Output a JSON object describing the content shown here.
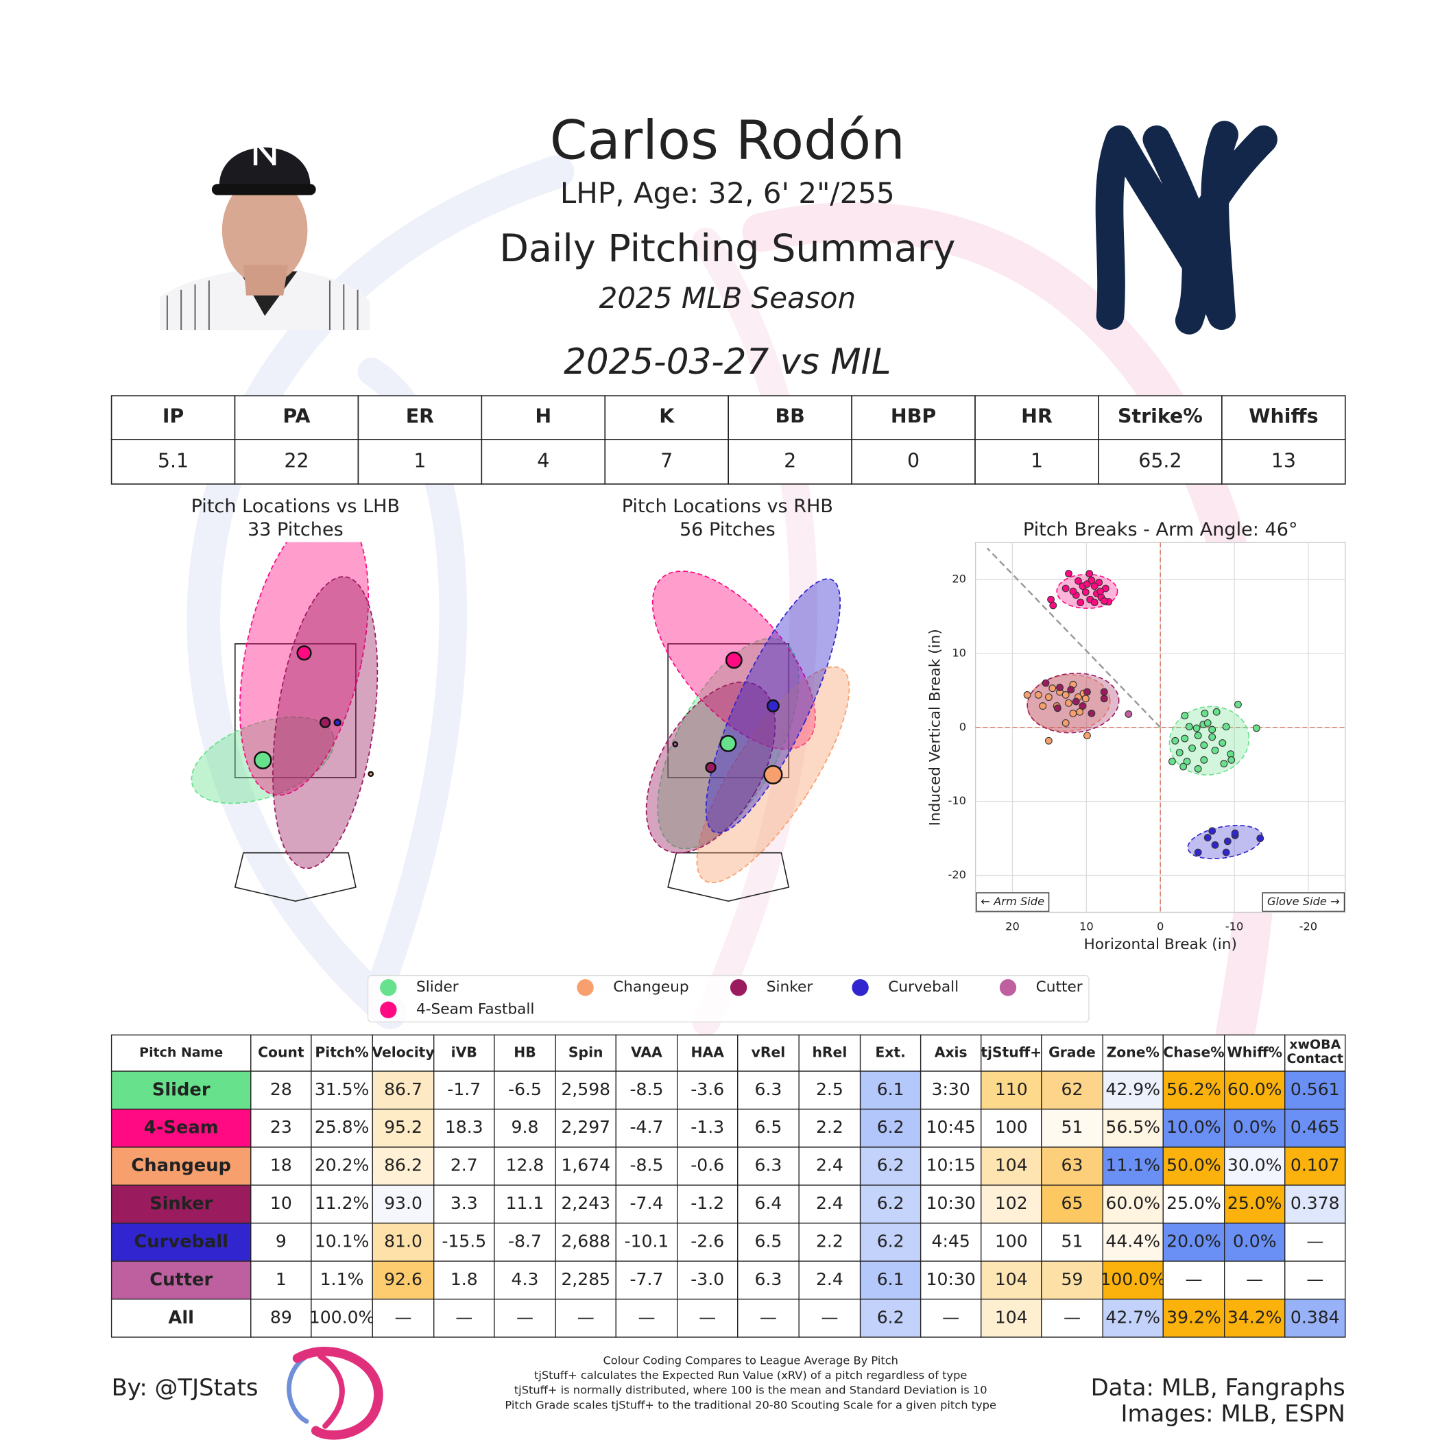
{
  "header": {
    "name": "Carlos Rodón",
    "bio": "LHP, Age: 32, 6' 2\"/255",
    "title": "Daily Pitching Summary",
    "season": "2025 MLB Season",
    "game": "2025-03-27 vs MIL"
  },
  "game_stats": {
    "columns": [
      "IP",
      "PA",
      "ER",
      "H",
      "K",
      "BB",
      "HBP",
      "HR",
      "Strike%",
      "Whiffs"
    ],
    "values": [
      5.1,
      22,
      1,
      4,
      7,
      2,
      0,
      1,
      65.2,
      13
    ]
  },
  "chart_data": [
    {
      "type": "location",
      "title": "Pitch Locations vs LHB",
      "subtitle": "33 Pitches",
      "xlim": [
        -2,
        2
      ],
      "ylim": [
        0,
        4.75
      ],
      "series": [
        {
          "color": "#67e18c",
          "x": -0.45,
          "y": 1.74,
          "size": 15,
          "ellipse": [
            1.03,
            0.51,
            -20
          ]
        },
        {
          "color": "#ff0a82",
          "x": 0.12,
          "y": 3.22,
          "size": 10,
          "ellipse": [
            0.8,
            2.0,
            12
          ]
        },
        {
          "color": "#f7a06e",
          "x": 1.04,
          "y": 1.55,
          "size": 1,
          "ellipse": null
        },
        {
          "color": "#9b1c5e",
          "x": 0.41,
          "y": 2.26,
          "size": 5,
          "ellipse": [
            0.67,
            2.03,
            8
          ]
        },
        {
          "color": "#3025ce",
          "x": 0.58,
          "y": 2.26,
          "size": 2,
          "ellipse": null
        }
      ]
    },
    {
      "type": "location",
      "title": "Pitch Locations vs RHB",
      "subtitle": "56 Pitches",
      "xlim": [
        -2,
        2
      ],
      "ylim": [
        0,
        4.75
      ],
      "series": [
        {
          "color": "#67e18c",
          "x": 0.01,
          "y": 1.97,
          "size": 13,
          "ellipse": [
            0.7,
            1.6,
            28
          ]
        },
        {
          "color": "#ff0a82",
          "x": 0.09,
          "y": 3.12,
          "size": 13,
          "ellipse": [
            1.51,
            0.7,
            49
          ]
        },
        {
          "color": "#f7a06e",
          "x": 0.63,
          "y": 1.54,
          "size": 17,
          "ellipse": [
            0.54,
            1.74,
            33
          ]
        },
        {
          "color": "#9b1c5e",
          "x": -0.23,
          "y": 1.64,
          "size": 5,
          "ellipse": [
            0.7,
            1.3,
            30
          ]
        },
        {
          "color": "#3025ce",
          "x": 0.63,
          "y": 2.49,
          "size": 7,
          "ellipse": [
            0.49,
            1.92,
            25
          ]
        },
        {
          "color": "#be5fa0",
          "x": -0.72,
          "y": 1.96,
          "size": 1,
          "ellipse": null
        }
      ]
    },
    {
      "type": "scatter",
      "title": "Pitch Breaks - Arm Angle: 46°",
      "arm_angle": 46,
      "xlabel": "Horizontal Break (in)",
      "ylabel": "Induced Vertical Break (in)",
      "xlim": [
        25,
        -25
      ],
      "ylim": [
        -25,
        25
      ],
      "xticks": [
        20,
        10,
        0,
        -10,
        -20
      ],
      "yticks": [
        20,
        10,
        0,
        -10,
        -20
      ],
      "grid": true,
      "annotations": [
        "← Arm Side",
        "Glove Side →"
      ],
      "series": [
        {
          "name": "Slider",
          "color": "#67e18c",
          "x": [
            -3.3,
            -6.0,
            -7.6,
            -10.5,
            -13.0,
            -5.8,
            -6.4,
            -8.9,
            -3.9,
            -4.9,
            -3.3,
            -2.0,
            -5.1,
            -7.0,
            -8.4,
            -5.9,
            -4.3,
            -2.6,
            -7.4,
            -9.5,
            -8.6,
            -5.9,
            -3.6,
            -3.1,
            -5.1,
            -9.6,
            -1.6,
            -7.0
          ],
          "y": [
            1.6,
            1.9,
            2.1,
            3.1,
            -0.1,
            0.4,
            0.6,
            0.1,
            0.1,
            -0.1,
            -1.5,
            -1.8,
            -1.1,
            -1.3,
            -2.1,
            -2.4,
            -2.8,
            -3.4,
            -3.1,
            -3.6,
            -4.9,
            -4.4,
            -4.6,
            -5.3,
            -5.6,
            -4.4,
            -4.6,
            -0.3
          ],
          "ellipse": [
            -6.6,
            -1.8,
            5.4,
            4.6,
            -10
          ]
        },
        {
          "name": "4-Seam Fastball",
          "color": "#ff0a82",
          "x": [
            12.4,
            9.6,
            11.1,
            8.3,
            10.5,
            8.9,
            7.4,
            12.8,
            10.1,
            8.6,
            11.4,
            8.0,
            9.5,
            7.0,
            10.8,
            8.9,
            7.6,
            14.8,
            14.5,
            9.9,
            11.8,
            9.3,
            8.1
          ],
          "y": [
            20.8,
            20.8,
            19.8,
            19.6,
            19.1,
            19.1,
            18.8,
            18.8,
            18.3,
            18.1,
            17.9,
            17.6,
            17.3,
            17.0,
            16.9,
            16.9,
            17.1,
            17.3,
            16.5,
            19.4,
            18.4,
            19.9,
            18.4
          ],
          "ellipse": [
            9.9,
            18.4,
            4.1,
            2.3,
            0
          ]
        },
        {
          "name": "Changeup",
          "color": "#f7a06e",
          "x": [
            18.0,
            16.5,
            15.1,
            14.6,
            13.6,
            12.8,
            11.8,
            11.1,
            10.4,
            10.1,
            12.4,
            14.0,
            10.9,
            11.8,
            12.8,
            9.9,
            15.1,
            15.9
          ],
          "y": [
            4.4,
            4.4,
            4.1,
            5.3,
            4.8,
            4.4,
            5.8,
            4.1,
            4.6,
            3.9,
            3.3,
            2.9,
            2.1,
            1.9,
            0.6,
            -1.1,
            -1.8,
            2.9
          ],
          "ellipse": [
            12.4,
            3.3,
            5.6,
            3.8,
            -5
          ]
        },
        {
          "name": "Sinker",
          "color": "#9b1c5e",
          "x": [
            15.5,
            13.6,
            12.1,
            9.9,
            7.6,
            7.6,
            10.5,
            9.3,
            13.9,
            11.4
          ],
          "y": [
            6.0,
            5.4,
            5.1,
            4.8,
            4.8,
            3.9,
            2.9,
            1.9,
            2.6,
            3.5
          ],
          "ellipse": [
            11.8,
            3.3,
            6.2,
            4.0,
            -5
          ]
        },
        {
          "name": "Curveball",
          "color": "#3025ce",
          "x": [
            -5.1,
            -6.4,
            -7.0,
            -7.4,
            -8.9,
            -9.1,
            -10.1,
            -10.1,
            -13.5
          ],
          "y": [
            -16.9,
            -14.9,
            -14.0,
            -15.9,
            -16.9,
            -15.4,
            -14.6,
            -14.3,
            -15.0
          ],
          "ellipse": [
            -8.75,
            -15.5,
            5.1,
            2.1,
            -10
          ]
        },
        {
          "name": "Cutter",
          "color": "#be5fa0",
          "x": [
            4.3
          ],
          "y": [
            1.8
          ],
          "ellipse": null
        }
      ]
    }
  ],
  "pitch_table": {
    "columns": [
      "Pitch Name",
      "Count",
      "Pitch%",
      "Velocity",
      "iVB",
      "HB",
      "Spin",
      "VAA",
      "HAA",
      "vRel",
      "hRel",
      "Ext.",
      "Axis",
      "tjStuff+",
      "Grade",
      "Zone%",
      "Chase%",
      "Whiff%",
      "xwOBA Contact"
    ],
    "rows": [
      [
        "Slider",
        "28",
        "31.5%",
        "86.7",
        "-1.7",
        "-6.5",
        "2,598",
        "-8.5",
        "-3.6",
        "6.3",
        "2.5",
        "6.1",
        "3:30",
        "110",
        "62",
        "42.9%",
        "56.2%",
        "60.0%",
        "0.561"
      ],
      [
        "4-Seam",
        "23",
        "25.8%",
        "95.2",
        "18.3",
        "9.8",
        "2,297",
        "-4.7",
        "-1.3",
        "6.5",
        "2.2",
        "6.2",
        "10:45",
        "100",
        "51",
        "56.5%",
        "10.0%",
        "0.0%",
        "0.465"
      ],
      [
        "Changeup",
        "18",
        "20.2%",
        "86.2",
        "2.7",
        "12.8",
        "1,674",
        "-8.5",
        "-0.6",
        "6.3",
        "2.4",
        "6.2",
        "10:15",
        "104",
        "63",
        "11.1%",
        "50.0%",
        "30.0%",
        "0.107"
      ],
      [
        "Sinker",
        "10",
        "11.2%",
        "93.0",
        "3.3",
        "11.1",
        "2,243",
        "-7.4",
        "-1.2",
        "6.4",
        "2.4",
        "6.2",
        "10:30",
        "102",
        "65",
        "60.0%",
        "25.0%",
        "25.0%",
        "0.378"
      ],
      [
        "Curveball",
        "9",
        "10.1%",
        "81.0",
        "-15.5",
        "-8.7",
        "2,688",
        "-10.1",
        "-2.6",
        "6.5",
        "2.2",
        "6.2",
        "4:45",
        "100",
        "51",
        "44.4%",
        "20.0%",
        "0.0%",
        "—"
      ],
      [
        "Cutter",
        "1",
        "1.1%",
        "92.6",
        "1.8",
        "4.3",
        "2,285",
        "-7.7",
        "-3.0",
        "6.3",
        "2.4",
        "6.1",
        "10:30",
        "104",
        "59",
        "100.0%",
        "—",
        "—",
        "—"
      ],
      [
        "All",
        "89",
        "100.0%",
        "—",
        "—",
        "—",
        "—",
        "—",
        "—",
        "—",
        "—",
        "6.2",
        "—",
        "104",
        "—",
        "42.7%",
        "39.2%",
        "34.2%",
        "0.384"
      ]
    ],
    "colors": [
      [
        "#67e18c",
        null,
        null,
        "#fde9c4",
        null,
        null,
        null,
        null,
        null,
        null,
        null,
        "#b5c8fb",
        null,
        "#fdd98b",
        "#fdd58a",
        "#edf1fc",
        "#fcb20c",
        "#fcb20c",
        "#6a90f5"
      ],
      [
        "#ff0a82",
        null,
        null,
        "#feecc6",
        null,
        null,
        null,
        null,
        null,
        null,
        null,
        "#b3c6fb",
        null,
        null,
        "#fffaf0",
        "#fff5e3",
        "#6a90f5",
        "#6a90f5",
        "#6a90f5"
      ],
      [
        "#f7a06e",
        null,
        null,
        "#fff0d6",
        null,
        null,
        null,
        null,
        null,
        null,
        null,
        "#c2d2fb",
        null,
        "#fde4b0",
        "#fdcf7a",
        "#6a90f5",
        "#fcb20c",
        "#f2f5fd",
        "#fcb20c"
      ],
      [
        "#9b1c5e",
        null,
        null,
        "#f5f7fd",
        null,
        null,
        null,
        null,
        null,
        null,
        null,
        "#c5d4fb",
        null,
        "#fff1d8",
        "#fdc762",
        "#fff4e0",
        null,
        "#fcb20c",
        "#dfe7fc"
      ],
      [
        "#3025ce",
        null,
        null,
        "#fde1a8",
        null,
        null,
        null,
        null,
        null,
        null,
        null,
        "#c3d2fb",
        null,
        null,
        null,
        "#fff8ea",
        "#6a90f5",
        "#6a90f5",
        null
      ],
      [
        "#be5fa0",
        null,
        null,
        "#fdcc6e",
        null,
        null,
        null,
        null,
        null,
        null,
        null,
        "#b5c8fb",
        null,
        "#fde6b4",
        "#fde0a6",
        "#fcb20c",
        null,
        null,
        null
      ],
      [
        null,
        null,
        null,
        null,
        null,
        null,
        null,
        null,
        null,
        null,
        null,
        "#c3d2fb",
        null,
        "#feefd0",
        null,
        "#c3d2fb",
        "#fcb20c",
        "#fcb20c",
        "#98b2f8"
      ]
    ]
  },
  "notes": [
    "Colour Coding Compares to League Average By Pitch",
    "tjStuff+ calculates the Expected Run Value (xRV) of a pitch regardless of type",
    "tjStuff+ is normally distributed, where 100 is the mean and Standard Deviation is 10",
    "Pitch Grade scales tjStuff+ to the traditional 20-80 Scouting Scale for a given pitch type"
  ],
  "footer": {
    "by": "By: @TJStats",
    "data": "Data: MLB, Fangraphs",
    "images": "Images: MLB, ESPN"
  }
}
